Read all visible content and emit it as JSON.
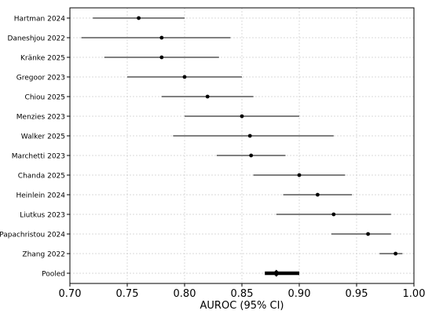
{
  "chart_data": {
    "type": "forest",
    "title": "",
    "xlabel": "AUROC (95% CI)",
    "ylabel": "",
    "xlim": [
      0.7,
      1.0
    ],
    "xticks": [
      "0.70",
      "0.75",
      "0.80",
      "0.85",
      "0.90",
      "0.95",
      "1.00"
    ],
    "grid": true,
    "studies": [
      {
        "label": "Hartman 2024",
        "estimate": 0.76,
        "lower": 0.72,
        "upper": 0.8
      },
      {
        "label": "Daneshjou 2022",
        "estimate": 0.78,
        "lower": 0.71,
        "upper": 0.84
      },
      {
        "label": "Kränke 2025",
        "estimate": 0.78,
        "lower": 0.73,
        "upper": 0.83
      },
      {
        "label": "Gregoor 2023",
        "estimate": 0.8,
        "lower": 0.75,
        "upper": 0.85
      },
      {
        "label": "Chiou 2025",
        "estimate": 0.82,
        "lower": 0.78,
        "upper": 0.86
      },
      {
        "label": "Menzies 2023",
        "estimate": 0.85,
        "lower": 0.8,
        "upper": 0.9
      },
      {
        "label": "Walker 2025",
        "estimate": 0.857,
        "lower": 0.79,
        "upper": 0.93
      },
      {
        "label": "Marchetti 2023",
        "estimate": 0.858,
        "lower": 0.828,
        "upper": 0.888
      },
      {
        "label": "Chanda 2025",
        "estimate": 0.9,
        "lower": 0.86,
        "upper": 0.94
      },
      {
        "label": "Heinlein 2024",
        "estimate": 0.916,
        "lower": 0.886,
        "upper": 0.946
      },
      {
        "label": "Liutkus 2023",
        "estimate": 0.93,
        "lower": 0.88,
        "upper": 0.98
      },
      {
        "label": "Papachristou 2024",
        "estimate": 0.96,
        "lower": 0.928,
        "upper": 0.98
      },
      {
        "label": "Zhang 2022",
        "estimate": 0.984,
        "lower": 0.97,
        "upper": 0.99
      }
    ],
    "pooled": {
      "label": "Pooled",
      "estimate": 0.88,
      "lower": 0.87,
      "upper": 0.9
    },
    "colors": {
      "study_ci": "#808080",
      "study_point": "#000000",
      "pooled": "#000000",
      "grid": "#cccccc",
      "frame": "#000000"
    }
  }
}
